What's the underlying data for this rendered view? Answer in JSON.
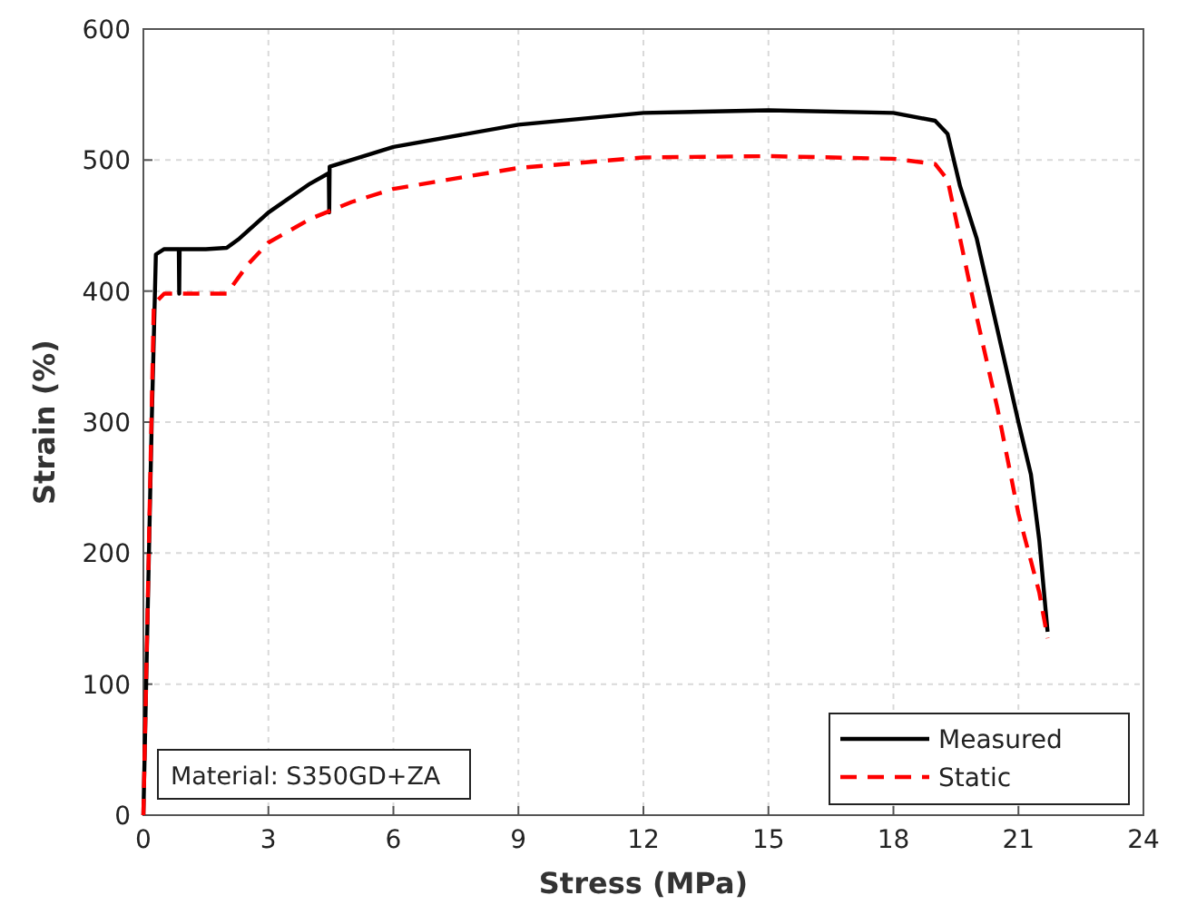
{
  "chart_data": {
    "type": "line",
    "xlabel": "Stress (MPa)",
    "ylabel": "Strain (%)",
    "xlim": [
      0,
      24
    ],
    "xticks": [
      0,
      3,
      6,
      9,
      12,
      15,
      18,
      21,
      24
    ],
    "ylim": [
      0,
      600
    ],
    "yticks": [
      0,
      100,
      200,
      300,
      400,
      500,
      600
    ],
    "grid": true,
    "legend": "bottom right",
    "annotations": [
      "Material: S350GD+ZA"
    ],
    "series": [
      {
        "name": "Measured",
        "color": "#000000",
        "line_style": "solid",
        "x": [
          0,
          0.2,
          0.3,
          0.5,
          0.85,
          0.86,
          0.87,
          1.5,
          2.0,
          2.3,
          3,
          4,
          4.45,
          4.46,
          4.47,
          6,
          9,
          12,
          15,
          18,
          19,
          19.3,
          19.6,
          20,
          20.5,
          21,
          21.3,
          21.5,
          21.7
        ],
        "values": [
          0,
          300,
          428,
          432,
          432,
          398,
          432,
          432,
          433,
          440,
          460,
          482,
          490,
          460,
          495,
          510,
          527,
          536,
          538,
          536,
          530,
          520,
          480,
          440,
          370,
          300,
          260,
          210,
          140
        ]
      },
      {
        "name": "Static",
        "color": "#ff0000",
        "line_style": "dashed",
        "x": [
          0,
          0.25,
          0.5,
          1,
          2,
          2.5,
          3,
          4,
          5,
          6,
          9,
          12,
          15,
          18,
          19,
          19.3,
          19.6,
          20,
          20.5,
          21,
          21.5,
          21.7
        ],
        "values": [
          0,
          390,
          398,
          398,
          398,
          420,
          437,
          455,
          468,
          478,
          494,
          502,
          503,
          501,
          497,
          485,
          440,
          380,
          310,
          230,
          170,
          135
        ]
      }
    ]
  }
}
